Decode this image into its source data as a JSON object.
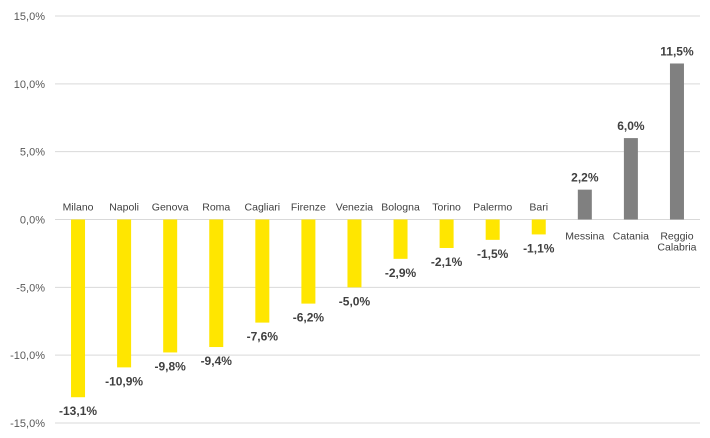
{
  "chart_data": {
    "type": "bar",
    "title": "",
    "xlabel": "",
    "ylabel": "",
    "ylim": [
      -15,
      15
    ],
    "yticks": [
      15,
      10,
      5,
      0,
      -5,
      -10,
      -15
    ],
    "ytick_labels": [
      "15,0%",
      "10,0%",
      "5,0%",
      "0,0%",
      "-5,0%",
      "-10,0%",
      "-15,0%"
    ],
    "grid": true,
    "categories": [
      [
        "Milano"
      ],
      [
        "Napoli"
      ],
      [
        "Genova"
      ],
      [
        "Roma"
      ],
      [
        "Cagliari"
      ],
      [
        "Firenze"
      ],
      [
        "Venezia"
      ],
      [
        "Bologna"
      ],
      [
        "Torino"
      ],
      [
        "Palermo"
      ],
      [
        "Bari"
      ],
      [
        "Messina"
      ],
      [
        "Catania"
      ],
      [
        "Reggio",
        "Calabria"
      ]
    ],
    "values": [
      -13.1,
      -10.9,
      -9.8,
      -9.4,
      -7.6,
      -6.2,
      -5.0,
      -2.9,
      -2.1,
      -1.5,
      -1.1,
      2.2,
      6.0,
      11.5
    ],
    "value_labels": [
      "-13,1%",
      "-10,9%",
      "-9,8%",
      "-9,4%",
      "-7,6%",
      "-6,2%",
      "-5,0%",
      "-2,9%",
      "-2,1%",
      "-1,5%",
      "-1,1%",
      "2,2%",
      "6,0%",
      "11,5%"
    ],
    "colors": {
      "negative": "#FFE600",
      "positive": "#808080",
      "grid": "#D9D9D9"
    }
  }
}
